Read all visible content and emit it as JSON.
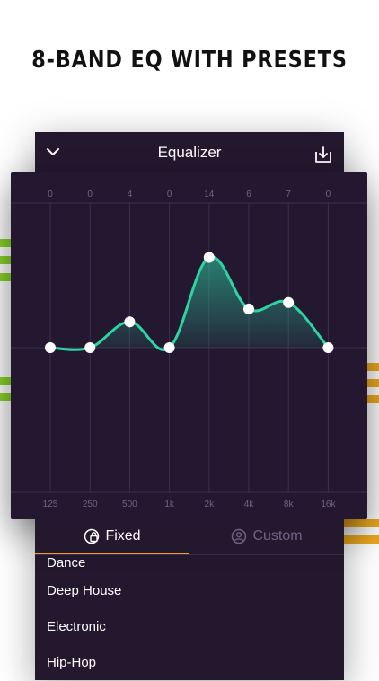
{
  "headline": "8-BAND EQ WITH PRESETS",
  "header": {
    "title": "Equalizer"
  },
  "eq": {
    "bands": [
      {
        "freq": "125",
        "gain": 0,
        "gain_label": "0"
      },
      {
        "freq": "250",
        "gain": 0,
        "gain_label": "0"
      },
      {
        "freq": "500",
        "gain": 4,
        "gain_label": "4"
      },
      {
        "freq": "1k",
        "gain": 0,
        "gain_label": "0"
      },
      {
        "freq": "2k",
        "gain": 14,
        "gain_label": "14"
      },
      {
        "freq": "4k",
        "gain": 6,
        "gain_label": "6"
      },
      {
        "freq": "8k",
        "gain": 7,
        "gain_label": "7"
      },
      {
        "freq": "16k",
        "gain": 0,
        "gain_label": "0"
      }
    ],
    "range": [
      -24,
      24
    ],
    "line_color": "#2ed3a4",
    "grid_color": "#3b2f4a"
  },
  "tabs": {
    "fixed": "Fixed",
    "custom": "Custom",
    "active": "fixed"
  },
  "presets": [
    "Dance",
    "Deep House",
    "Electronic",
    "Hip-Hop"
  ],
  "colors": {
    "accent": "#f0a21e",
    "panel_bg": "#24182f",
    "stripe_green": "#8bd42a",
    "stripe_orange": "#f0ab1e"
  }
}
